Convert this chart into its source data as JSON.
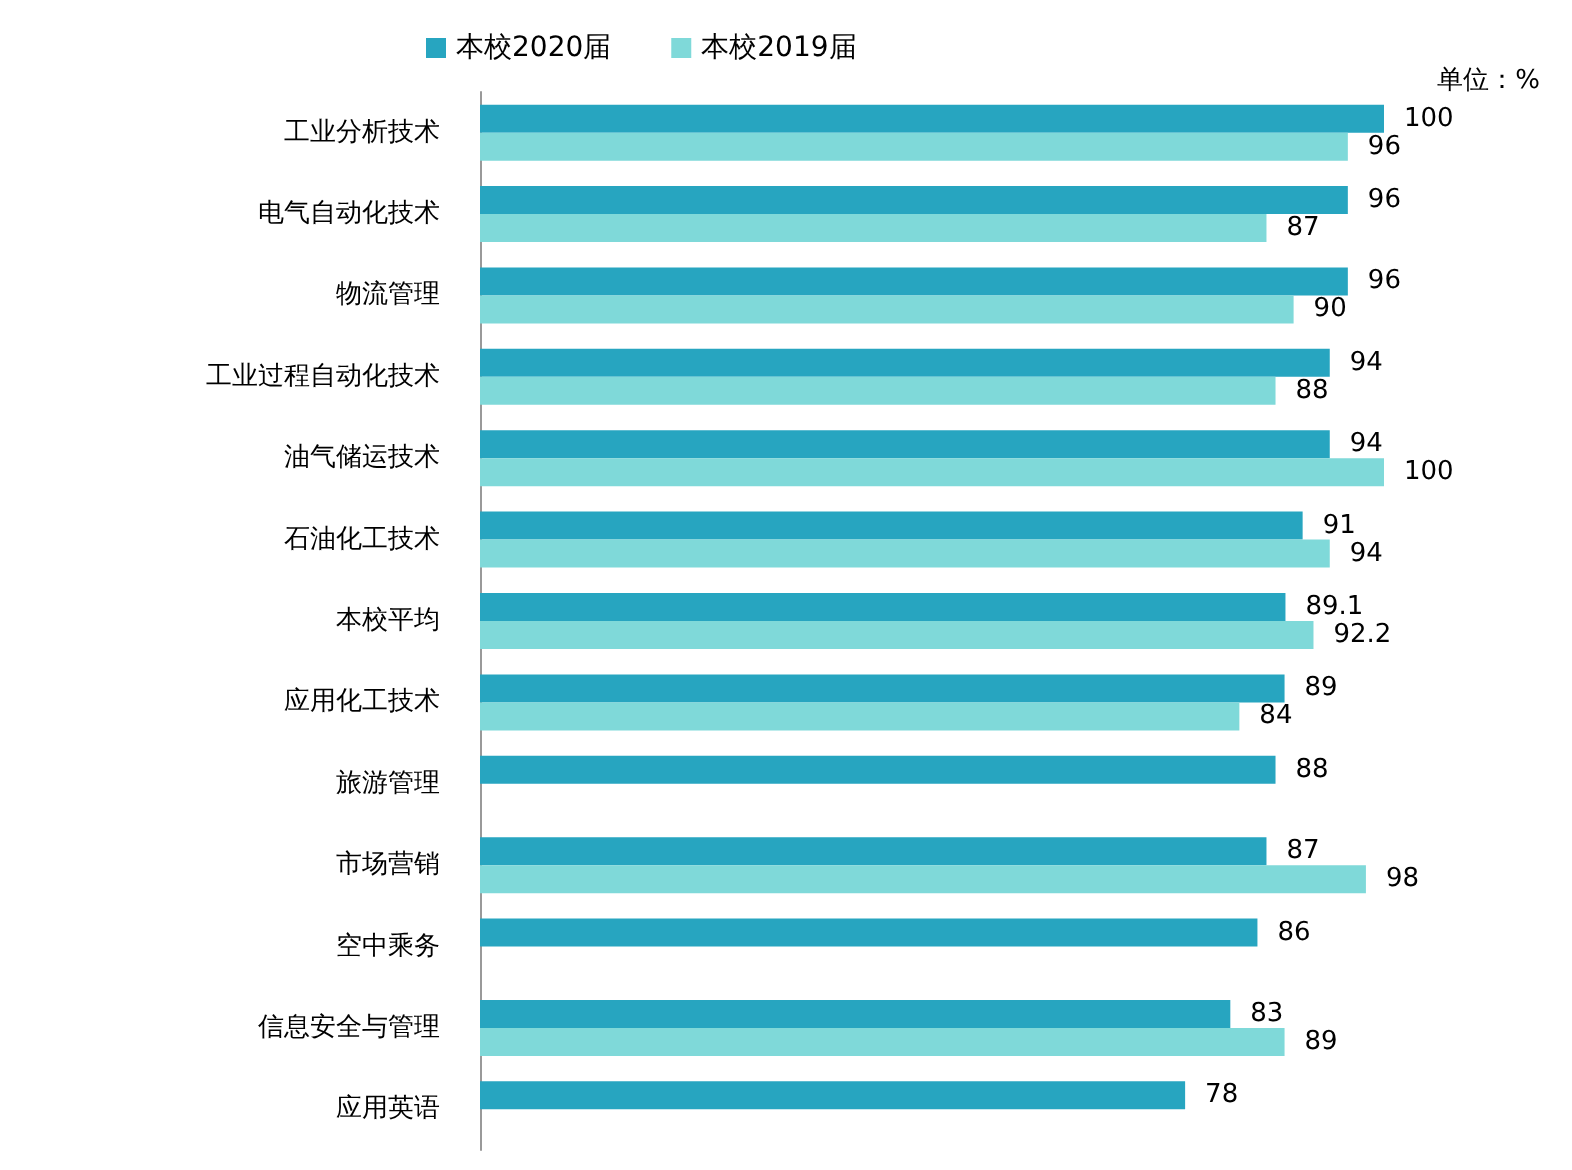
{
  "chart_data": {
    "type": "bar",
    "orientation": "horizontal",
    "categories": [
      "工业分析技术",
      "电气自动化技术",
      "物流管理",
      "工业过程自动化技术",
      "油气储运技术",
      "石油化工技术",
      "本校平均",
      "应用化工技术",
      "旅游管理",
      "市场营销",
      "空中乘务",
      "信息安全与管理",
      "应用英语"
    ],
    "series": [
      {
        "name": "本校2020届",
        "color": "#27a5c0",
        "values": [
          100,
          96,
          96,
          94,
          94,
          91,
          89.1,
          89,
          88,
          87,
          86,
          83,
          78
        ]
      },
      {
        "name": "本校2019届",
        "color": "#7fd9d9",
        "values": [
          96,
          87,
          90,
          88,
          100,
          94,
          92.2,
          84,
          null,
          98,
          null,
          89,
          null
        ]
      }
    ],
    "data_labels": true,
    "legend": "top left",
    "tick_labels": "y",
    "annotations": [
      "单位：%"
    ]
  }
}
